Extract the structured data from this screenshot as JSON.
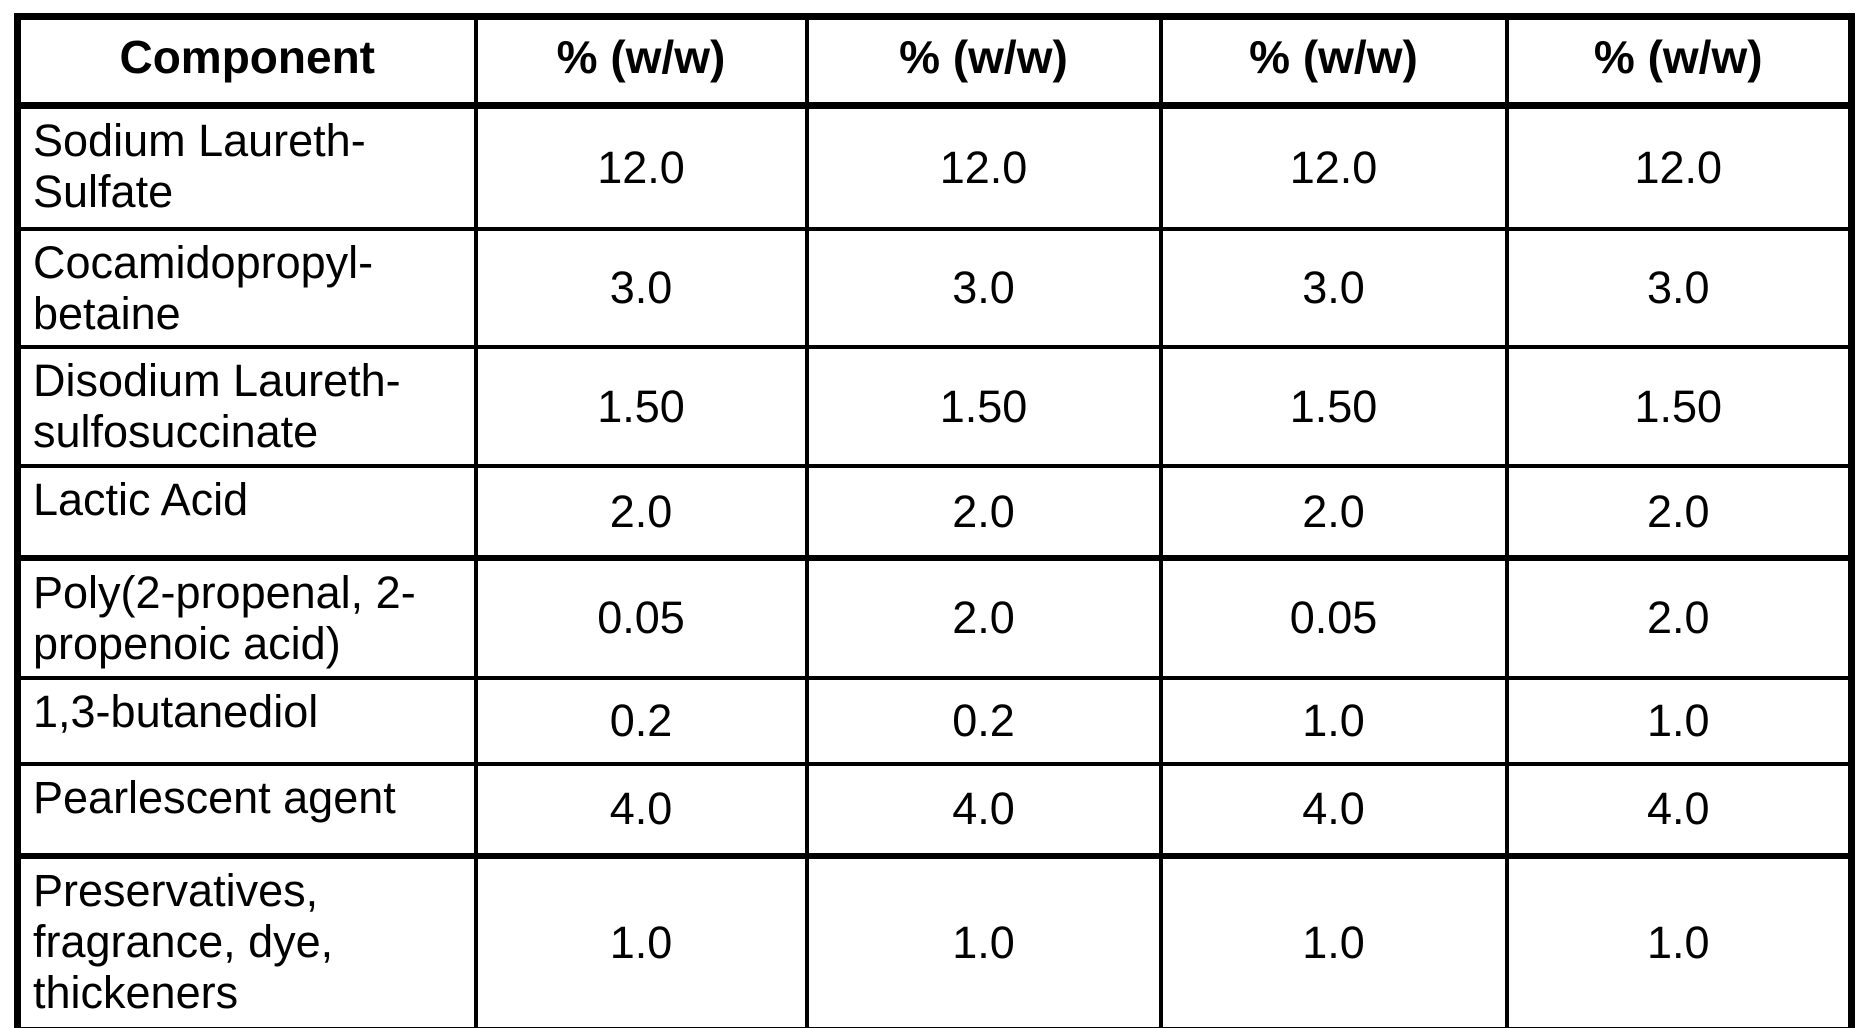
{
  "table": {
    "header": [
      "Component",
      "% (w/w)",
      "% (w/w)",
      "% (w/w)",
      "% (w/w)"
    ],
    "rows": [
      {
        "component": "Sodium Laureth-Sulfate",
        "values": [
          "12.0",
          "12.0",
          "12.0",
          "12.0"
        ]
      },
      {
        "component": "Cocamidopropyl-betaine",
        "values": [
          "3.0",
          "3.0",
          "3.0",
          "3.0"
        ]
      },
      {
        "component": "Disodium Laureth-sulfosuccinate",
        "values": [
          "1.50",
          "1.50",
          "1.50",
          "1.50"
        ]
      },
      {
        "component": "Lactic Acid",
        "values": [
          "2.0",
          "2.0",
          "2.0",
          "2.0"
        ]
      },
      {
        "component": "Poly(2-propenal, 2-propenoic acid)",
        "values": [
          "0.05",
          "2.0",
          "0.05",
          "2.0"
        ]
      },
      {
        "component": "1,3-butanediol",
        "values": [
          "0.2",
          "0.2",
          "1.0",
          "1.0"
        ]
      },
      {
        "component": "Pearlescent agent",
        "values": [
          "4.0",
          "4.0",
          "4.0",
          "4.0"
        ]
      },
      {
        "component": "Preservatives, fragrance, dye, thickeners",
        "values": [
          "1.0",
          "1.0",
          "1.0",
          "1.0"
        ]
      }
    ]
  }
}
